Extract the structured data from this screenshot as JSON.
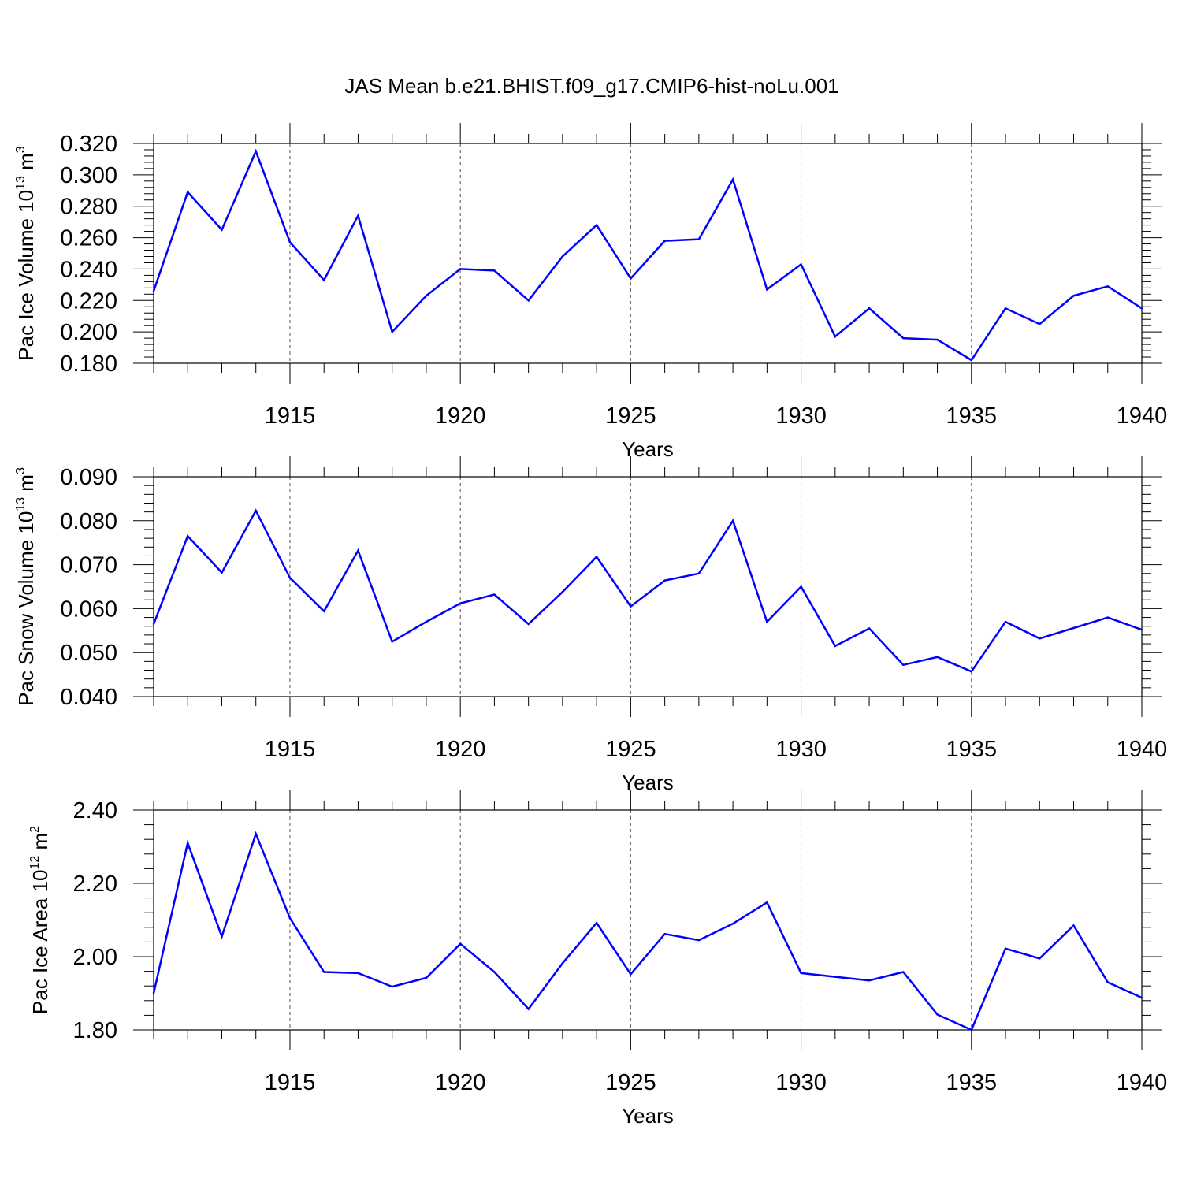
{
  "figure_title": "JAS Mean b.e21.BHIST.f09_g17.CMIP6-hist-noLu.001",
  "colors": {
    "series": "#0000ff",
    "axes": "#000000",
    "grid": "#555555",
    "background": "#ffffff"
  },
  "chart_data": [
    {
      "type": "line",
      "name": "pac-ice-volume",
      "title": "JAS Mean b.e21.BHIST.f09_g17.CMIP6-hist-noLu.001",
      "ylabel": {
        "main": "Pac Ice Volume 10",
        "sup": "13",
        "unit": " m",
        "unit_sup": "3"
      },
      "xlabel": "Years",
      "xlim": [
        1911,
        1940
      ],
      "ylim": [
        0.18,
        0.32
      ],
      "yticks": [
        0.18,
        0.2,
        0.22,
        0.24,
        0.26,
        0.28,
        0.3,
        0.32
      ],
      "yticklabels": [
        "0.180",
        "0.200",
        "0.220",
        "0.240",
        "0.260",
        "0.280",
        "0.300",
        "0.320"
      ],
      "xticks": [
        1915,
        1920,
        1925,
        1930,
        1935,
        1940
      ],
      "xticklabels": [
        "1915",
        "1920",
        "1925",
        "1930",
        "1935",
        "1940"
      ],
      "grid_x": [
        1915,
        1920,
        1925,
        1930,
        1935
      ],
      "x": [
        1911,
        1912,
        1913,
        1914,
        1915,
        1916,
        1917,
        1918,
        1919,
        1920,
        1921,
        1922,
        1923,
        1924,
        1925,
        1926,
        1927,
        1928,
        1929,
        1930,
        1931,
        1932,
        1933,
        1934,
        1935,
        1936,
        1937,
        1938,
        1939,
        1940
      ],
      "values": [
        0.226,
        0.289,
        0.265,
        0.315,
        0.257,
        0.233,
        0.274,
        0.2,
        0.223,
        0.24,
        0.239,
        0.22,
        0.248,
        0.268,
        0.234,
        0.258,
        0.259,
        0.297,
        0.227,
        0.243,
        0.197,
        0.215,
        0.196,
        0.195,
        0.182,
        0.215,
        0.205,
        0.223,
        0.229,
        0.215
      ]
    },
    {
      "type": "line",
      "name": "pac-snow-volume",
      "ylabel": {
        "main": "Pac Snow Volume 10",
        "sup": "13",
        "unit": " m",
        "unit_sup": "3"
      },
      "xlabel": "Years",
      "xlim": [
        1911,
        1940
      ],
      "ylim": [
        0.04,
        0.09
      ],
      "yticks": [
        0.04,
        0.05,
        0.06,
        0.07,
        0.08,
        0.09
      ],
      "yticklabels": [
        "0.040",
        "0.050",
        "0.060",
        "0.070",
        "0.080",
        "0.090"
      ],
      "xticks": [
        1915,
        1920,
        1925,
        1930,
        1935,
        1940
      ],
      "xticklabels": [
        "1915",
        "1920",
        "1925",
        "1930",
        "1935",
        "1940"
      ],
      "grid_x": [
        1915,
        1920,
        1925,
        1930,
        1935
      ],
      "x": [
        1911,
        1912,
        1913,
        1914,
        1915,
        1916,
        1917,
        1918,
        1919,
        1920,
        1921,
        1922,
        1923,
        1924,
        1925,
        1926,
        1927,
        1928,
        1929,
        1930,
        1931,
        1932,
        1933,
        1934,
        1935,
        1936,
        1937,
        1938,
        1939,
        1940
      ],
      "values": [
        0.0565,
        0.0765,
        0.0682,
        0.0823,
        0.067,
        0.0594,
        0.0732,
        0.0525,
        0.057,
        0.0612,
        0.0632,
        0.0565,
        0.0638,
        0.0718,
        0.0605,
        0.0664,
        0.068,
        0.08,
        0.057,
        0.065,
        0.0515,
        0.0555,
        0.0472,
        0.049,
        0.0457,
        0.057,
        0.0532,
        0.0556,
        0.058,
        0.0552
      ]
    },
    {
      "type": "line",
      "name": "pac-ice-area",
      "ylabel": {
        "main": "Pac Ice Area 10",
        "sup": "12",
        "unit": " m",
        "unit_sup": "2"
      },
      "xlabel": "Years",
      "xlim": [
        1911,
        1940
      ],
      "ylim": [
        1.8,
        2.4
      ],
      "yticks": [
        1.8,
        2.0,
        2.2,
        2.4
      ],
      "yticklabels": [
        "1.80",
        "2.00",
        "2.20",
        "2.40"
      ],
      "xticks": [
        1915,
        1920,
        1925,
        1930,
        1935,
        1940
      ],
      "xticklabels": [
        "1915",
        "1920",
        "1925",
        "1930",
        "1935",
        "1940"
      ],
      "grid_x": [
        1915,
        1920,
        1925,
        1930,
        1935
      ],
      "x": [
        1911,
        1912,
        1913,
        1914,
        1915,
        1916,
        1917,
        1918,
        1919,
        1920,
        1921,
        1922,
        1923,
        1924,
        1925,
        1926,
        1927,
        1928,
        1929,
        1930,
        1931,
        1932,
        1933,
        1934,
        1935,
        1936,
        1937,
        1938,
        1939,
        1940
      ],
      "values": [
        1.9,
        2.31,
        2.055,
        2.335,
        2.105,
        1.958,
        1.955,
        1.918,
        1.942,
        2.035,
        1.958,
        1.857,
        1.982,
        2.092,
        1.952,
        2.062,
        2.045,
        2.09,
        2.148,
        1.955,
        1.945,
        1.935,
        1.958,
        1.842,
        1.8,
        2.022,
        1.995,
        2.085,
        1.93,
        1.888
      ]
    }
  ]
}
